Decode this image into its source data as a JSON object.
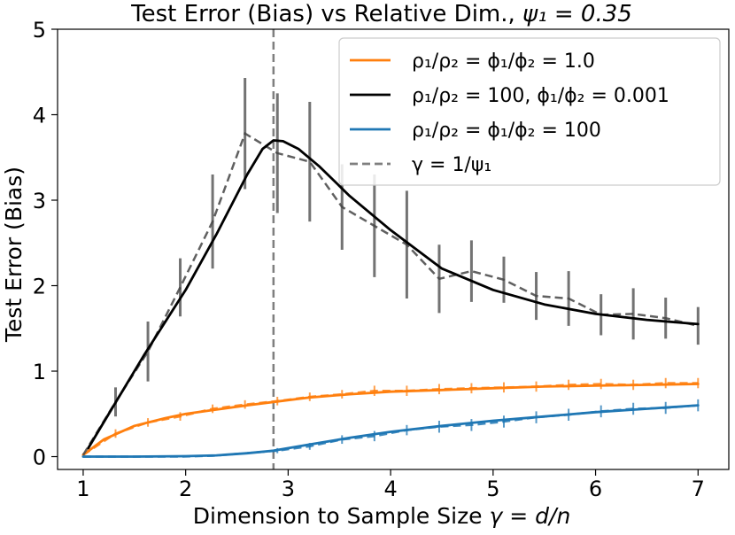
{
  "chart_data": {
    "type": "line",
    "title_prefix": "Test Error (Bias) vs Relative Dim., ",
    "title_math": "ψ₁ = 0.35",
    "xlabel_prefix": "Dimension to Sample Size ",
    "xlabel_math": "γ = d/n",
    "ylabel": "Test Error (Bias)",
    "xlim": [
      0.75,
      7.3
    ],
    "ylim": [
      -0.15,
      5.0
    ],
    "xticks": [
      1,
      2,
      3,
      4,
      5,
      6,
      7
    ],
    "yticks": [
      0,
      1,
      2,
      3,
      4,
      5
    ],
    "vline": {
      "x": 2.857,
      "label": "γ = 1/ψ₁",
      "color": "#7f7f7f"
    },
    "legend_position": "top-right",
    "series": [
      {
        "name": "ρ₁/ρ₂ = ϕ₁/ϕ₂ = 1.0",
        "color": "#ff7f0e",
        "theory_x": [
          1.0,
          1.2,
          1.5,
          1.8,
          2.0,
          2.3,
          2.6,
          2.857,
          3.2,
          3.6,
          4.0,
          4.5,
          5.0,
          5.5,
          6.0,
          6.5,
          7.0
        ],
        "theory_y": [
          0.02,
          0.2,
          0.36,
          0.45,
          0.5,
          0.55,
          0.6,
          0.64,
          0.69,
          0.73,
          0.76,
          0.78,
          0.8,
          0.82,
          0.83,
          0.84,
          0.85
        ],
        "points": [
          {
            "x": 1.0,
            "y": 0.02,
            "err": 0.02
          },
          {
            "x": 1.316,
            "y": 0.27,
            "err": 0.05
          },
          {
            "x": 1.632,
            "y": 0.4,
            "err": 0.05
          },
          {
            "x": 1.947,
            "y": 0.47,
            "err": 0.05
          },
          {
            "x": 2.263,
            "y": 0.56,
            "err": 0.05
          },
          {
            "x": 2.579,
            "y": 0.61,
            "err": 0.05
          },
          {
            "x": 2.895,
            "y": 0.65,
            "err": 0.05
          },
          {
            "x": 3.211,
            "y": 0.7,
            "err": 0.05
          },
          {
            "x": 3.526,
            "y": 0.73,
            "err": 0.05
          },
          {
            "x": 3.842,
            "y": 0.77,
            "err": 0.06
          },
          {
            "x": 4.158,
            "y": 0.77,
            "err": 0.06
          },
          {
            "x": 4.474,
            "y": 0.79,
            "err": 0.06
          },
          {
            "x": 4.789,
            "y": 0.8,
            "err": 0.06
          },
          {
            "x": 5.105,
            "y": 0.81,
            "err": 0.06
          },
          {
            "x": 5.421,
            "y": 0.82,
            "err": 0.06
          },
          {
            "x": 5.737,
            "y": 0.84,
            "err": 0.06
          },
          {
            "x": 6.053,
            "y": 0.85,
            "err": 0.06
          },
          {
            "x": 6.368,
            "y": 0.84,
            "err": 0.06
          },
          {
            "x": 6.684,
            "y": 0.86,
            "err": 0.06
          },
          {
            "x": 7.0,
            "y": 0.86,
            "err": 0.06
          }
        ]
      },
      {
        "name": "ρ₁/ρ₂ = 100, ϕ₁/ϕ₂ = 0.001",
        "color": "#000000",
        "theory_x": [
          1.05,
          1.3,
          1.6,
          2.0,
          2.3,
          2.6,
          2.75,
          2.857,
          2.95,
          3.1,
          3.3,
          3.6,
          4.0,
          4.5,
          5.0,
          5.5,
          6.0,
          6.5,
          7.0
        ],
        "theory_y": [
          0.1,
          0.6,
          1.2,
          1.95,
          2.6,
          3.3,
          3.6,
          3.7,
          3.69,
          3.6,
          3.4,
          3.05,
          2.65,
          2.2,
          1.95,
          1.78,
          1.67,
          1.6,
          1.55
        ],
        "points": [
          {
            "x": 1.0,
            "y": 0.02,
            "err": 0.0
          },
          {
            "x": 1.316,
            "y": 0.64,
            "err": 0.17
          },
          {
            "x": 1.632,
            "y": 1.23,
            "err": 0.35
          },
          {
            "x": 1.947,
            "y": 1.98,
            "err": 0.34
          },
          {
            "x": 2.263,
            "y": 2.75,
            "err": 0.55
          },
          {
            "x": 2.579,
            "y": 3.78,
            "err": 0.65
          },
          {
            "x": 2.895,
            "y": 3.55,
            "err": 0.7
          },
          {
            "x": 3.211,
            "y": 3.45,
            "err": 0.7
          },
          {
            "x": 3.526,
            "y": 2.92,
            "err": 0.5
          },
          {
            "x": 3.842,
            "y": 2.7,
            "err": 0.6
          },
          {
            "x": 4.158,
            "y": 2.48,
            "err": 0.63
          },
          {
            "x": 4.474,
            "y": 2.08,
            "err": 0.4
          },
          {
            "x": 4.789,
            "y": 2.17,
            "err": 0.36
          },
          {
            "x": 5.105,
            "y": 2.07,
            "err": 0.27
          },
          {
            "x": 5.421,
            "y": 1.88,
            "err": 0.28
          },
          {
            "x": 5.737,
            "y": 1.85,
            "err": 0.32
          },
          {
            "x": 6.053,
            "y": 1.66,
            "err": 0.24
          },
          {
            "x": 6.368,
            "y": 1.67,
            "err": 0.3
          },
          {
            "x": 6.684,
            "y": 1.62,
            "err": 0.24
          },
          {
            "x": 7.0,
            "y": 1.53,
            "err": 0.22
          }
        ]
      },
      {
        "name": "ρ₁/ρ₂ = ϕ₁/ϕ₂ = 100",
        "color": "#1f77b4",
        "theory_x": [
          1.0,
          1.5,
          2.0,
          2.3,
          2.6,
          2.857,
          3.2,
          3.6,
          4.0,
          4.5,
          5.0,
          5.5,
          6.0,
          6.5,
          7.0
        ],
        "theory_y": [
          0.0,
          0.0,
          0.005,
          0.015,
          0.04,
          0.07,
          0.14,
          0.22,
          0.29,
          0.36,
          0.42,
          0.47,
          0.52,
          0.56,
          0.6
        ],
        "points": [
          {
            "x": 1.0,
            "y": 0.0,
            "err": 0.0
          },
          {
            "x": 1.316,
            "y": 0.0,
            "err": 0.0
          },
          {
            "x": 1.632,
            "y": 0.0,
            "err": 0.0
          },
          {
            "x": 1.947,
            "y": 0.0,
            "err": 0.0
          },
          {
            "x": 2.263,
            "y": 0.01,
            "err": 0.0
          },
          {
            "x": 2.579,
            "y": 0.04,
            "err": 0.01
          },
          {
            "x": 2.895,
            "y": 0.07,
            "err": 0.03
          },
          {
            "x": 3.211,
            "y": 0.12,
            "err": 0.04
          },
          {
            "x": 3.526,
            "y": 0.2,
            "err": 0.05
          },
          {
            "x": 3.842,
            "y": 0.24,
            "err": 0.06
          },
          {
            "x": 4.158,
            "y": 0.31,
            "err": 0.06
          },
          {
            "x": 4.474,
            "y": 0.35,
            "err": 0.07
          },
          {
            "x": 4.789,
            "y": 0.37,
            "err": 0.07
          },
          {
            "x": 5.105,
            "y": 0.41,
            "err": 0.07
          },
          {
            "x": 5.421,
            "y": 0.46,
            "err": 0.07
          },
          {
            "x": 5.737,
            "y": 0.49,
            "err": 0.07
          },
          {
            "x": 6.053,
            "y": 0.53,
            "err": 0.07
          },
          {
            "x": 6.368,
            "y": 0.56,
            "err": 0.07
          },
          {
            "x": 6.684,
            "y": 0.57,
            "err": 0.07
          },
          {
            "x": 7.0,
            "y": 0.6,
            "err": 0.07
          }
        ]
      }
    ],
    "legend_entries": [
      {
        "label": "ρ₁/ρ₂ = ϕ₁/ϕ₂ = 1.0",
        "color": "#ff7f0e",
        "dashed": false
      },
      {
        "label": "ρ₁/ρ₂ = 100, ϕ₁/ϕ₂ = 0.001",
        "color": "#000000",
        "dashed": false
      },
      {
        "label": "ρ₁/ρ₂ = ϕ₁/ϕ₂ = 100",
        "color": "#1f77b4",
        "dashed": false
      },
      {
        "label": "γ = 1/ψ₁",
        "color": "#7f7f7f",
        "dashed": true
      }
    ]
  }
}
